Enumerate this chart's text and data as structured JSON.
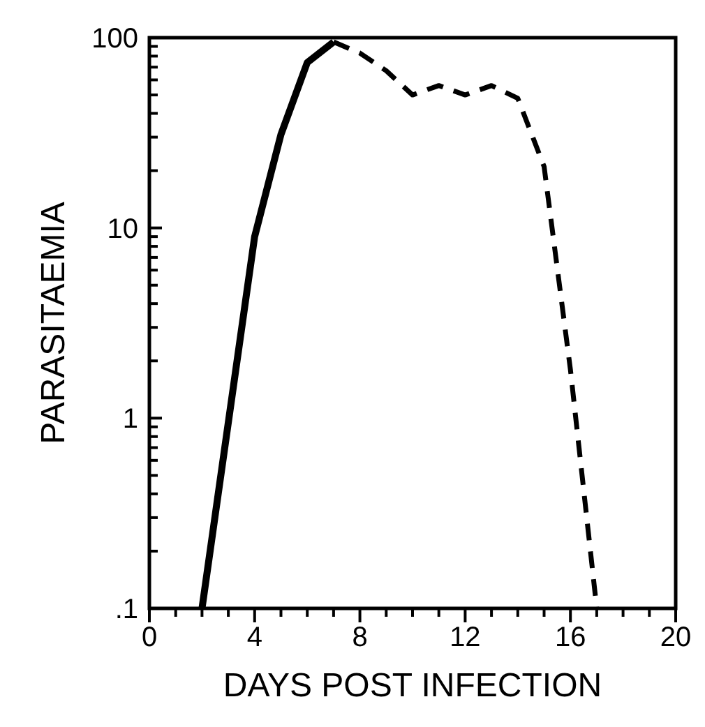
{
  "chart_data": {
    "type": "line",
    "xlabel": "DAYS POST INFECTION",
    "ylabel": "PARASITAEMIA",
    "log": "y",
    "xlim": [
      0,
      20
    ],
    "ylim": [
      0.1,
      100
    ],
    "xticks": [
      0,
      {
        "value": 1,
        "label": null
      },
      {
        "value": 2,
        "label": null
      },
      {
        "value": 3,
        "label": null
      },
      4,
      {
        "value": 5,
        "label": null
      },
      {
        "value": 6,
        "label": null
      },
      {
        "value": 7,
        "label": null
      },
      8,
      {
        "value": 9,
        "label": null
      },
      {
        "value": 10,
        "label": null
      },
      {
        "value": 11,
        "label": null
      },
      12,
      {
        "value": 13,
        "label": null
      },
      {
        "value": 14,
        "label": null
      },
      {
        "value": 15,
        "label": null
      },
      16,
      {
        "value": 17,
        "label": null
      },
      {
        "value": 18,
        "label": null
      },
      {
        "value": 19,
        "label": null
      },
      20
    ],
    "yticks": [
      {
        "value": 0.1,
        "label": ".1"
      },
      {
        "value": 0.2,
        "label": null
      },
      {
        "value": 0.3,
        "label": null
      },
      {
        "value": 0.4,
        "label": null
      },
      {
        "value": 0.5,
        "label": null
      },
      {
        "value": 0.6,
        "label": null
      },
      {
        "value": 0.7,
        "label": null
      },
      {
        "value": 0.8,
        "label": null
      },
      {
        "value": 0.9,
        "label": null
      },
      1,
      {
        "value": 2,
        "label": null
      },
      {
        "value": 3,
        "label": null
      },
      {
        "value": 4,
        "label": null
      },
      {
        "value": 5,
        "label": null
      },
      {
        "value": 6,
        "label": null
      },
      {
        "value": 7,
        "label": null
      },
      {
        "value": 8,
        "label": null
      },
      {
        "value": 9,
        "label": null
      },
      10,
      {
        "value": 20,
        "label": null
      },
      {
        "value": 30,
        "label": null
      },
      {
        "value": 40,
        "label": null
      },
      {
        "value": 50,
        "label": null
      },
      {
        "value": 60,
        "label": null
      },
      {
        "value": 70,
        "label": null
      },
      {
        "value": 80,
        "label": null
      },
      {
        "value": 90,
        "label": null
      },
      100
    ],
    "grid": false,
    "marker": "none",
    "series": [
      {
        "color": "#000000",
        "line_style": "solid",
        "x": [
          2,
          4,
          5,
          6,
          7
        ],
        "values": [
          0.1,
          9,
          31,
          74,
          95
        ]
      },
      {
        "color": "#000000",
        "line_style": "dashed",
        "x": [
          7,
          8,
          9,
          10,
          11,
          12,
          13,
          14,
          15,
          16,
          17
        ],
        "values": [
          95,
          83,
          67,
          50,
          56,
          50,
          56,
          48,
          21,
          1.8,
          0.1
        ]
      }
    ]
  }
}
